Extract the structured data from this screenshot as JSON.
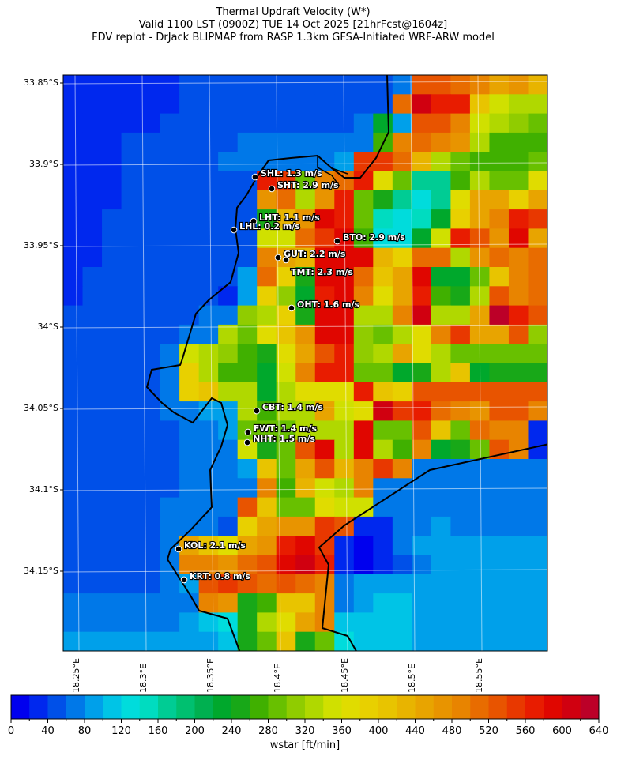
{
  "title": {
    "line1": "Thermal Updraft Velocity (W*)",
    "line2": "Valid 1100 LST (0900Z) TUE 14 Oct 2025 [21hrFcst@1604z]",
    "line3": "FDV replot - DrJack BLIPMAP from RASP 1.3km GFSA-Initiated WRF-ARW model"
  },
  "axes": {
    "lat_ticks": [
      {
        "value": 33.85,
        "label": "33.85°S"
      },
      {
        "value": 33.9,
        "label": "33.9°S"
      },
      {
        "value": 33.95,
        "label": "33.95°S"
      },
      {
        "value": 34.0,
        "label": "34°S"
      },
      {
        "value": 34.05,
        "label": "34.05°S"
      },
      {
        "value": 34.1,
        "label": "34.1°S"
      },
      {
        "value": 34.15,
        "label": "34.15°S"
      }
    ],
    "lon_ticks": [
      {
        "value": 18.25,
        "label": "18.25°E"
      },
      {
        "value": 18.3,
        "label": "18.3°E"
      },
      {
        "value": 18.35,
        "label": "18.35°E"
      },
      {
        "value": 18.4,
        "label": "18.4°E"
      },
      {
        "value": 18.45,
        "label": "18.45°E"
      },
      {
        "value": 18.5,
        "label": "18.5°E"
      },
      {
        "value": 18.55,
        "label": "18.55°E"
      }
    ]
  },
  "colorbar": {
    "label": "wstar [ft/min]",
    "min": 0,
    "max": 640,
    "step": 20,
    "tick_labels": [
      "0",
      "40",
      "80",
      "120",
      "160",
      "200",
      "240",
      "280",
      "320",
      "360",
      "400",
      "440",
      "480",
      "520",
      "560",
      "600",
      "640"
    ],
    "colors": [
      "#0000ee",
      "#0028ee",
      "#0050e8",
      "#0078e8",
      "#00a0ea",
      "#00c4e6",
      "#00dcdc",
      "#00dcc0",
      "#00cc94",
      "#00c070",
      "#00b050",
      "#00a82c",
      "#18a818",
      "#40b000",
      "#68c000",
      "#90cc00",
      "#b0d800",
      "#d0e000",
      "#e0dc00",
      "#e8d000",
      "#e8c400",
      "#e8b400",
      "#e8a400",
      "#e89400",
      "#e88400",
      "#e86c00",
      "#e85400",
      "#e83800",
      "#e81c00",
      "#e00600",
      "#d00010",
      "#bc0028"
    ]
  },
  "chart_data": {
    "type": "heatmap",
    "title": "Thermal Updraft Velocity (W*)",
    "units": "ft/min",
    "bin_width": 20,
    "note_values": "grid values are colorbar bin indices (value range = index*20 to index*20+20 ft/min), rows north to south, columns west to east",
    "grid": [
      [
        1,
        1,
        1,
        1,
        1,
        1,
        2,
        2,
        2,
        2,
        2,
        2,
        2,
        2,
        2,
        2,
        2,
        3,
        26,
        26,
        25,
        24,
        22,
        23,
        21
      ],
      [
        1,
        1,
        1,
        1,
        1,
        1,
        2,
        2,
        2,
        2,
        2,
        2,
        2,
        2,
        2,
        2,
        2,
        25,
        30,
        28,
        28,
        20,
        17,
        16,
        16
      ],
      [
        1,
        1,
        1,
        1,
        1,
        2,
        2,
        2,
        2,
        2,
        2,
        2,
        2,
        2,
        2,
        3,
        11,
        4,
        26,
        26,
        24,
        17,
        16,
        15,
        14
      ],
      [
        1,
        1,
        1,
        2,
        2,
        2,
        2,
        2,
        2,
        3,
        3,
        3,
        3,
        3,
        3,
        3,
        13,
        24,
        25,
        24,
        23,
        16,
        13,
        13,
        13
      ],
      [
        1,
        1,
        1,
        2,
        2,
        2,
        2,
        2,
        3,
        3,
        3,
        3,
        3,
        3,
        4,
        27,
        27,
        25,
        21,
        16,
        14,
        13,
        13,
        13,
        14
      ],
      [
        1,
        1,
        1,
        2,
        2,
        2,
        2,
        2,
        2,
        2,
        28,
        27,
        14,
        24,
        25,
        28,
        18,
        14,
        8,
        8,
        13,
        16,
        14,
        14,
        18
      ],
      [
        1,
        1,
        1,
        2,
        2,
        2,
        2,
        2,
        2,
        2,
        23,
        25,
        16,
        23,
        28,
        14,
        12,
        8,
        6,
        8,
        18,
        22,
        22,
        19,
        22
      ],
      [
        1,
        1,
        2,
        2,
        2,
        2,
        2,
        2,
        2,
        2,
        12,
        21,
        23,
        29,
        28,
        14,
        7,
        6,
        7,
        11,
        19,
        22,
        24,
        28,
        27
      ],
      [
        1,
        1,
        2,
        2,
        2,
        2,
        2,
        2,
        2,
        2,
        17,
        17,
        25,
        27,
        29,
        13,
        6,
        6,
        11,
        17,
        28,
        26,
        23,
        29,
        22
      ],
      [
        1,
        1,
        2,
        2,
        2,
        2,
        2,
        2,
        2,
        2,
        24,
        22,
        21,
        29,
        29,
        29,
        21,
        19,
        25,
        25,
        16,
        23,
        25,
        24,
        25
      ],
      [
        1,
        2,
        2,
        2,
        2,
        2,
        2,
        2,
        2,
        4,
        25,
        19,
        12,
        29,
        29,
        25,
        20,
        22,
        29,
        11,
        11,
        14,
        20,
        24,
        25
      ],
      [
        1,
        2,
        2,
        2,
        2,
        2,
        2,
        2,
        1,
        4,
        19,
        15,
        11,
        28,
        29,
        24,
        18,
        22,
        28,
        13,
        12,
        16,
        26,
        24,
        25
      ],
      [
        2,
        2,
        2,
        2,
        2,
        2,
        2,
        3,
        3,
        15,
        16,
        19,
        12,
        29,
        29,
        16,
        16,
        24,
        30,
        16,
        16,
        22,
        31,
        28,
        26
      ],
      [
        2,
        2,
        2,
        2,
        2,
        2,
        3,
        3,
        16,
        14,
        18,
        20,
        23,
        29,
        29,
        15,
        14,
        16,
        18,
        24,
        27,
        22,
        22,
        26,
        15
      ],
      [
        2,
        2,
        2,
        2,
        2,
        3,
        17,
        16,
        15,
        13,
        12,
        18,
        22,
        26,
        28,
        15,
        16,
        22,
        18,
        16,
        14,
        14,
        14,
        14,
        14
      ],
      [
        2,
        2,
        2,
        2,
        2,
        3,
        19,
        16,
        13,
        13,
        11,
        17,
        24,
        28,
        28,
        14,
        14,
        11,
        12,
        16,
        20,
        11,
        12,
        12,
        12
      ],
      [
        2,
        2,
        2,
        2,
        2,
        3,
        19,
        20,
        16,
        16,
        11,
        16,
        18,
        18,
        18,
        28,
        20,
        19,
        26,
        26,
        26,
        26,
        26,
        26,
        26
      ],
      [
        2,
        2,
        2,
        2,
        2,
        3,
        3,
        4,
        4,
        16,
        13,
        16,
        16,
        22,
        17,
        18,
        30,
        27,
        28,
        25,
        24,
        23,
        26,
        26,
        24
      ],
      [
        2,
        2,
        2,
        2,
        2,
        2,
        3,
        3,
        4,
        14,
        14,
        14,
        16,
        16,
        16,
        29,
        14,
        14,
        26,
        20,
        14,
        25,
        24,
        24,
        1
      ],
      [
        2,
        2,
        2,
        2,
        2,
        2,
        3,
        3,
        3,
        17,
        12,
        14,
        26,
        29,
        16,
        29,
        16,
        13,
        24,
        11,
        12,
        14,
        26,
        24,
        1
      ],
      [
        2,
        2,
        2,
        2,
        2,
        2,
        3,
        3,
        3,
        4,
        20,
        14,
        22,
        26,
        21,
        24,
        27,
        24,
        3,
        3,
        3,
        3,
        3,
        3,
        3
      ],
      [
        2,
        2,
        2,
        2,
        2,
        2,
        3,
        3,
        3,
        3,
        24,
        13,
        21,
        17,
        16,
        24,
        3,
        3,
        3,
        3,
        3,
        3,
        3,
        3,
        3
      ],
      [
        2,
        2,
        2,
        2,
        2,
        3,
        3,
        3,
        3,
        26,
        20,
        14,
        14,
        18,
        17,
        17,
        3,
        3,
        3,
        3,
        3,
        3,
        3,
        3,
        3
      ],
      [
        2,
        2,
        2,
        2,
        2,
        3,
        3,
        3,
        2,
        19,
        22,
        23,
        23,
        27,
        26,
        1,
        1,
        3,
        3,
        4,
        3,
        3,
        3,
        3,
        3
      ],
      [
        2,
        2,
        2,
        2,
        2,
        3,
        22,
        20,
        18,
        22,
        23,
        28,
        29,
        27,
        1,
        0,
        1,
        3,
        4,
        4,
        4,
        4,
        4,
        4,
        4
      ],
      [
        2,
        2,
        2,
        2,
        2,
        3,
        24,
        24,
        23,
        25,
        26,
        29,
        30,
        28,
        1,
        0,
        1,
        2,
        3,
        4,
        4,
        4,
        4,
        4,
        4
      ],
      [
        2,
        2,
        2,
        2,
        2,
        3,
        4,
        26,
        27,
        26,
        25,
        26,
        25,
        24,
        3,
        4,
        4,
        4,
        4,
        4,
        4,
        4,
        4,
        4,
        4
      ],
      [
        3,
        3,
        3,
        3,
        3,
        3,
        3,
        24,
        23,
        12,
        13,
        20,
        20,
        24,
        3,
        4,
        5,
        5,
        4,
        4,
        4,
        4,
        4,
        4,
        4
      ],
      [
        3,
        3,
        3,
        3,
        3,
        3,
        4,
        5,
        6,
        12,
        16,
        18,
        22,
        24,
        5,
        5,
        5,
        5,
        4,
        4,
        4,
        4,
        4,
        4,
        4
      ],
      [
        4,
        4,
        4,
        4,
        4,
        4,
        4,
        4,
        5,
        12,
        14,
        20,
        12,
        14,
        6,
        5,
        5,
        5,
        4,
        4,
        4,
        4,
        4,
        4,
        4
      ]
    ],
    "extent": {
      "lon": [
        18.24,
        18.6106
      ],
      "lat": [
        33.8444,
        34.2
      ]
    }
  },
  "stations": [
    {
      "id": "SHL",
      "label": "SHL: 1.3 m/s",
      "lon": 18.3829,
      "lat": 33.9078
    },
    {
      "id": "SHT",
      "label": "SHT: 2.9 m/s",
      "lon": 18.3953,
      "lat": 33.915
    },
    {
      "id": "LHT",
      "label": "LHT: 1.1 m/s",
      "lon": 18.3818,
      "lat": 33.935
    },
    {
      "id": "LHL",
      "label": "LHL: 0.2 m/s",
      "lon": 18.3671,
      "lat": 33.9403
    },
    {
      "id": "BTO",
      "label": "BTO: 2.9 m/s",
      "lon": 18.4441,
      "lat": 33.9471
    },
    {
      "id": "GUT",
      "label": "GUT: 2.2 m/s",
      "lon": 18.4,
      "lat": 33.9573
    },
    {
      "id": "TMT",
      "label": "TMT: 2.3 m/s",
      "lon": 18.4059,
      "lat": 33.9587
    },
    {
      "id": "OHT",
      "label": "OHT: 1.6 m/s",
      "lon": 18.41,
      "lat": 33.9883
    },
    {
      "id": "CBT",
      "label": "CBT: 1.4 m/s",
      "lon": 18.3841,
      "lat": 34.0515
    },
    {
      "id": "FWT",
      "label": "FWT: 1.4 m/s",
      "lon": 18.3776,
      "lat": 34.0646
    },
    {
      "id": "NHT",
      "label": "NHT: 1.5 m/s",
      "lon": 18.3771,
      "lat": 34.0709
    },
    {
      "id": "KOL",
      "label": "KOL: 2.1 m/s",
      "lon": 18.3259,
      "lat": 34.1364
    },
    {
      "id": "KRT",
      "label": "KRT: 0.8 m/s",
      "lon": 18.33,
      "lat": 34.1553
    }
  ]
}
